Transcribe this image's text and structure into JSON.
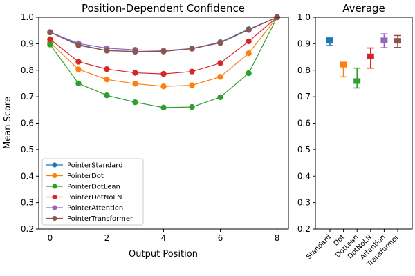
{
  "chart_data": [
    {
      "type": "line",
      "title": "Position-Dependent Confidence",
      "xlabel": "Output Position",
      "ylabel": "Mean Score",
      "xlim": [
        -0.4,
        8.4
      ],
      "ylim": [
        0.2,
        1.0
      ],
      "xticks": [
        "0",
        "2",
        "4",
        "6",
        "8"
      ],
      "yticks": [
        "0.2",
        "0.3",
        "0.4",
        "0.5",
        "0.6",
        "0.7",
        "0.8",
        "0.9",
        "1.0"
      ],
      "legend_position": "lower-left",
      "x": [
        0,
        1,
        2,
        3,
        4,
        5,
        6,
        7,
        8
      ],
      "series": [
        {
          "name": "PointerStandard",
          "color": "#1f77b4",
          "values": [
            0.943,
            0.897,
            0.874,
            0.87,
            0.871,
            0.882,
            0.906,
            0.955,
            1.0
          ]
        },
        {
          "name": "PointerDot",
          "color": "#ff7f0e",
          "values": [
            0.905,
            0.803,
            0.765,
            0.749,
            0.739,
            0.743,
            0.775,
            0.864,
            1.0
          ]
        },
        {
          "name": "PointerDotLean",
          "color": "#2ca02c",
          "values": [
            0.897,
            0.75,
            0.705,
            0.679,
            0.659,
            0.661,
            0.698,
            0.789,
            1.0
          ]
        },
        {
          "name": "PointerDotNoLN",
          "color": "#d62728",
          "values": [
            0.917,
            0.832,
            0.804,
            0.79,
            0.786,
            0.795,
            0.827,
            0.909,
            1.0
          ]
        },
        {
          "name": "PointerAttention",
          "color": "#9467bd",
          "values": [
            0.944,
            0.901,
            0.883,
            0.877,
            0.874,
            0.882,
            0.905,
            0.952,
            1.0
          ]
        },
        {
          "name": "PointerTransformer",
          "color": "#8c564b",
          "values": [
            0.943,
            0.894,
            0.874,
            0.871,
            0.871,
            0.881,
            0.903,
            0.953,
            1.0
          ]
        }
      ]
    },
    {
      "type": "scatter",
      "title": "Average",
      "ylim": [
        0.2,
        1.0
      ],
      "yticks": [
        "0.2",
        "0.3",
        "0.4",
        "0.5",
        "0.6",
        "0.7",
        "0.8",
        "0.9",
        "1.0"
      ],
      "categories": [
        "Standard",
        "Dot",
        "DotLean",
        "DotNoLN",
        "Attention",
        "Transformer"
      ],
      "series": [
        {
          "name": "Standard",
          "color": "#1f77b4",
          "mean": 0.911,
          "low": 0.893,
          "high": 0.922
        },
        {
          "name": "Dot",
          "color": "#ff7f0e",
          "mean": 0.821,
          "low": 0.775,
          "high": 0.83
        },
        {
          "name": "DotLean",
          "color": "#2ca02c",
          "mean": 0.759,
          "low": 0.733,
          "high": 0.808
        },
        {
          "name": "DotNoLN",
          "color": "#d62728",
          "mean": 0.852,
          "low": 0.808,
          "high": 0.884
        },
        {
          "name": "Attention",
          "color": "#9467bd",
          "mean": 0.913,
          "low": 0.885,
          "high": 0.937
        },
        {
          "name": "Transformer",
          "color": "#8c564b",
          "mean": 0.911,
          "low": 0.886,
          "high": 0.931
        }
      ]
    }
  ]
}
